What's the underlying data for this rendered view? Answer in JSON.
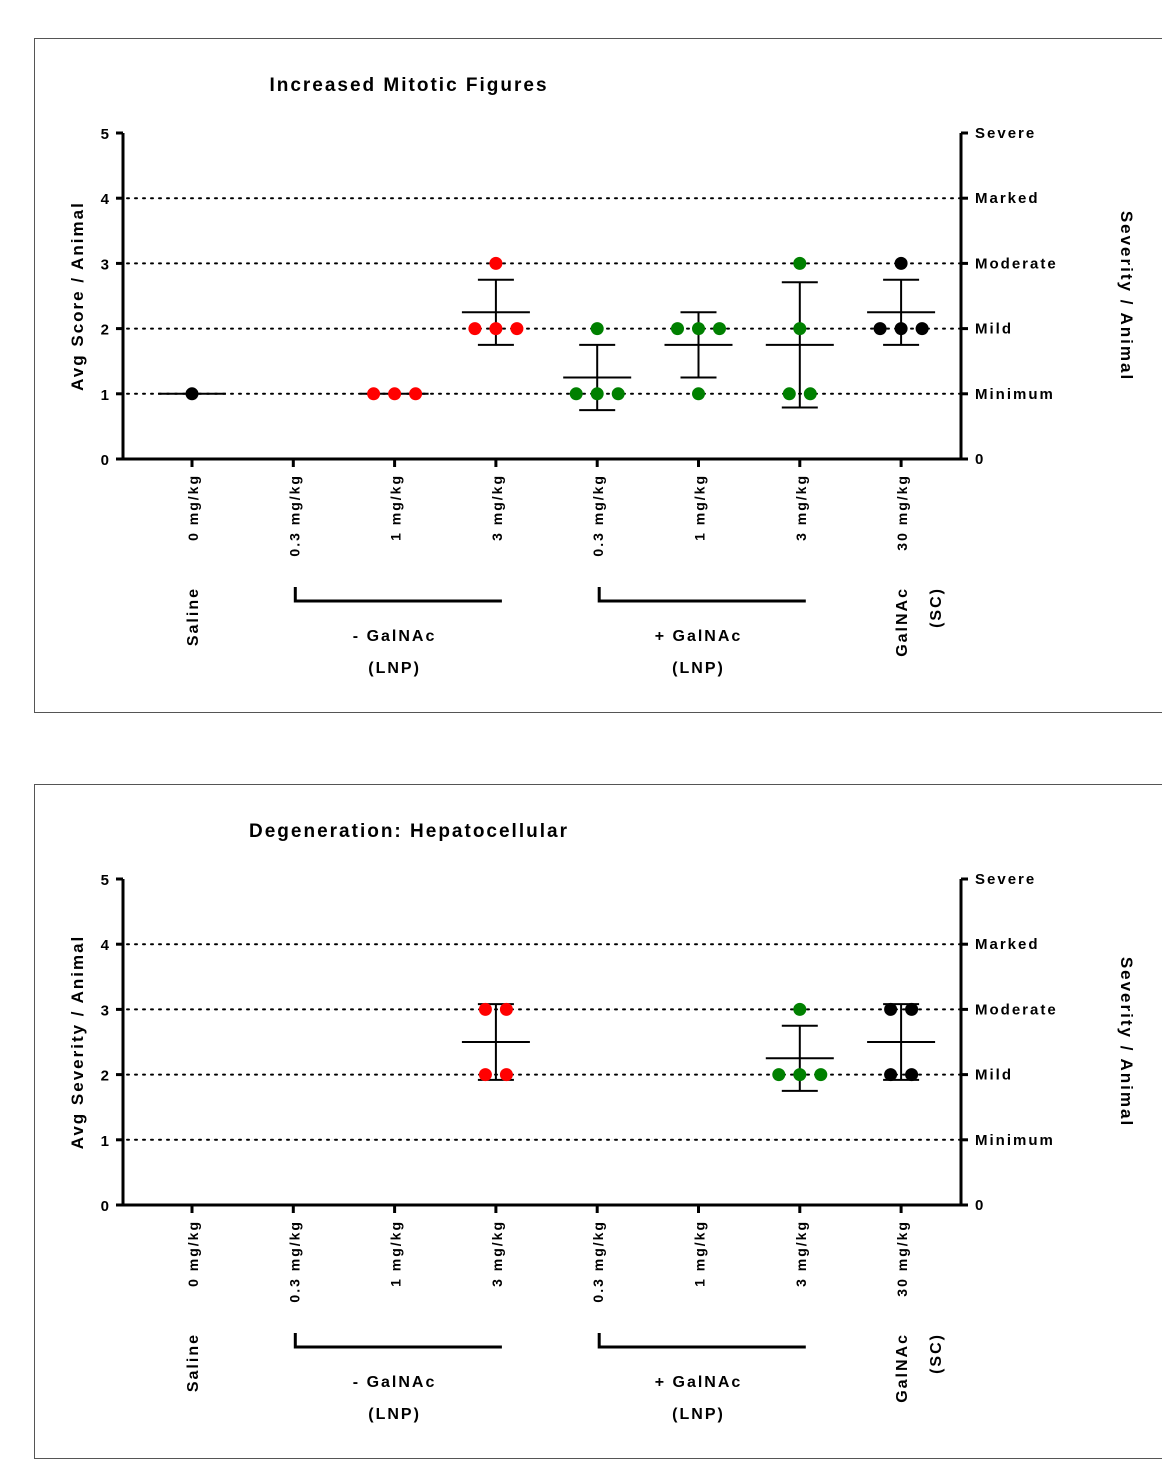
{
  "chart_data": [
    {
      "type": "scatter",
      "title": "Increased Mitotic Figures",
      "ylabel": "Avg Score / Animal",
      "ylabel_right": "Severity / Animal",
      "ylim": [
        0,
        5
      ],
      "yticks": [
        0,
        1,
        2,
        3,
        4,
        5
      ],
      "right_ticks": [
        {
          "value": 5,
          "label": "Severe"
        },
        {
          "value": 4,
          "label": "Marked"
        },
        {
          "value": 3,
          "label": "Moderate"
        },
        {
          "value": 2,
          "label": "Mild"
        },
        {
          "value": 1,
          "label": "Minimum"
        },
        {
          "value": 0,
          "label": "0"
        }
      ],
      "grid": "dotted horizontal at 1, 2, 3, 4",
      "categories": [
        "0 mg/kg",
        "0.3 mg/kg",
        "1 mg/kg",
        "3 mg/kg",
        "0.3 mg/kg",
        "1 mg/kg",
        "3 mg/kg",
        "30 mg/kg"
      ],
      "groups": [
        {
          "label": "Saline",
          "label2": "",
          "from": 0,
          "to": 0,
          "bracket": false
        },
        {
          "label": "- GalNAc",
          "label2": "(LNP)",
          "from": 1,
          "to": 3,
          "bracket": true
        },
        {
          "label": "+ GalNAc",
          "label2": "(LNP)",
          "from": 4,
          "to": 6,
          "bracket": true
        },
        {
          "label": "GalNAc",
          "label2": "(SC)",
          "from": 7,
          "to": 7,
          "bracket": false
        }
      ],
      "series": [
        {
          "category": 0,
          "color": "#000000",
          "points": [
            1
          ],
          "mean": 1,
          "sd": 0
        },
        {
          "category": 2,
          "color": "#ff0000",
          "points": [
            1,
            1,
            1
          ],
          "mean": 1,
          "sd": 0
        },
        {
          "category": 3,
          "color": "#ff0000",
          "points": [
            2,
            2,
            2,
            3
          ],
          "mean": 2.25,
          "sd": 0.5
        },
        {
          "category": 4,
          "color": "#008000",
          "points": [
            1,
            1,
            1,
            2
          ],
          "mean": 1.25,
          "sd": 0.5
        },
        {
          "category": 5,
          "color": "#008000",
          "points": [
            2,
            2,
            2,
            1
          ],
          "mean": 1.75,
          "sd": 0.5
        },
        {
          "category": 6,
          "color": "#008000",
          "points": [
            1,
            1,
            2,
            3
          ],
          "mean": 1.75,
          "sd": 0.96
        },
        {
          "category": 7,
          "color": "#000000",
          "points": [
            2,
            2,
            2,
            3
          ],
          "mean": 2.25,
          "sd": 0.5
        }
      ]
    },
    {
      "type": "scatter",
      "title": "Degeneration: Hepatocellular",
      "ylabel": "Avg Severity / Animal",
      "ylabel_right": "Severity / Animal",
      "ylim": [
        0,
        5
      ],
      "yticks": [
        0,
        1,
        2,
        3,
        4,
        5
      ],
      "right_ticks": [
        {
          "value": 5,
          "label": "Severe"
        },
        {
          "value": 4,
          "label": "Marked"
        },
        {
          "value": 3,
          "label": "Moderate"
        },
        {
          "value": 2,
          "label": "Mild"
        },
        {
          "value": 1,
          "label": "Minimum"
        },
        {
          "value": 0,
          "label": "0"
        }
      ],
      "grid": "dotted horizontal at 1, 2, 3, 4",
      "categories": [
        "0 mg/kg",
        "0.3 mg/kg",
        "1 mg/kg",
        "3 mg/kg",
        "0.3 mg/kg",
        "1 mg/kg",
        "3 mg/kg",
        "30 mg/kg"
      ],
      "groups": [
        {
          "label": "Saline",
          "label2": "",
          "from": 0,
          "to": 0,
          "bracket": false
        },
        {
          "label": "- GalNAc",
          "label2": "(LNP)",
          "from": 1,
          "to": 3,
          "bracket": true
        },
        {
          "label": "+ GalNAc",
          "label2": "(LNP)",
          "from": 4,
          "to": 6,
          "bracket": true
        },
        {
          "label": "GalNAc",
          "label2": "(SC)",
          "from": 7,
          "to": 7,
          "bracket": false
        }
      ],
      "series": [
        {
          "category": 3,
          "color": "#ff0000",
          "points": [
            2,
            2,
            3,
            3
          ],
          "mean": 2.5,
          "sd": 0.58
        },
        {
          "category": 6,
          "color": "#008000",
          "points": [
            2,
            2,
            2,
            3
          ],
          "mean": 2.25,
          "sd": 0.5
        },
        {
          "category": 7,
          "color": "#000000",
          "points": [
            2,
            2,
            3,
            3
          ],
          "mean": 2.5,
          "sd": 0.58
        }
      ]
    }
  ]
}
